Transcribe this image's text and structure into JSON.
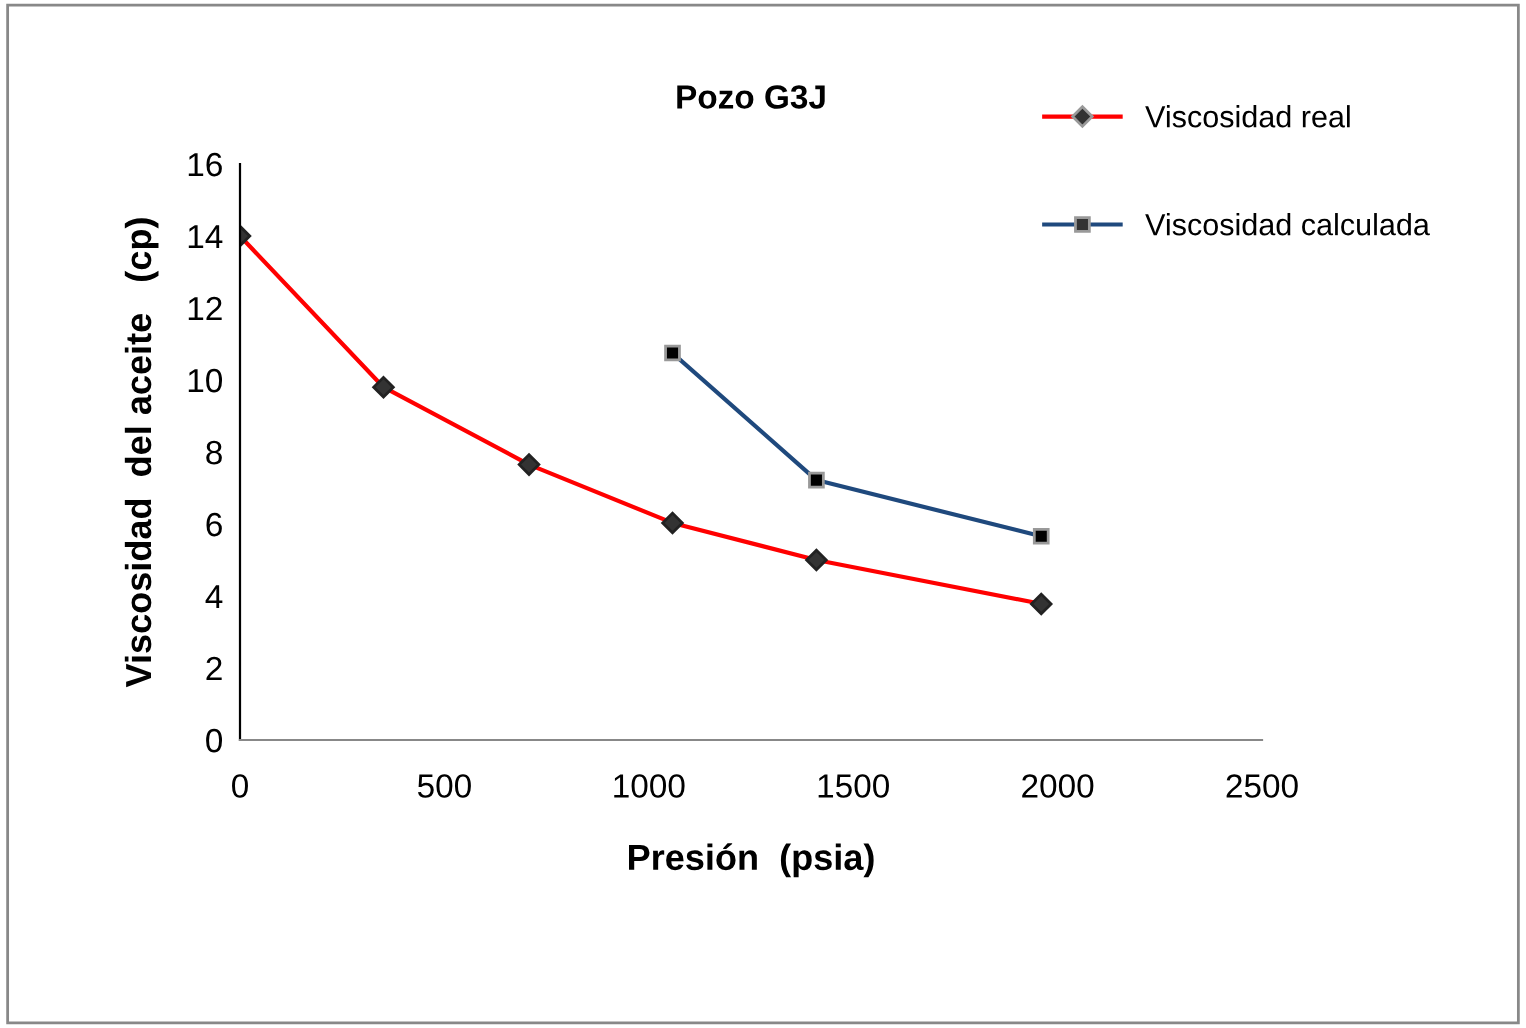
{
  "chart_data": {
    "type": "line",
    "title": "Pozo G3J",
    "xlabel": "Presión  (psia)",
    "ylabel": "Viscosidad  del aceite   (cp)",
    "xlim": [
      0,
      2500
    ],
    "xticks": [
      0,
      500,
      1000,
      1500,
      2000,
      2500
    ],
    "ylim": [
      0,
      16
    ],
    "yticks": [
      0,
      2,
      4,
      6,
      8,
      10,
      12,
      14,
      16
    ],
    "grid": false,
    "legend": "right",
    "line_style": "solid",
    "series": [
      {
        "name": "Viscosidad real",
        "color": "#ff0000",
        "marker": "diamond",
        "x": [
          0,
          351,
          707,
          1058,
          1410,
          1960
        ],
        "values": [
          14,
          9.8,
          7.65,
          6.03,
          5.0,
          3.78
        ]
      },
      {
        "name": "Viscosidad calculada",
        "color": "#1f497d",
        "marker": "square",
        "x": [
          1058,
          1410,
          1960
        ],
        "values": [
          10.75,
          7.22,
          5.66
        ]
      }
    ]
  }
}
